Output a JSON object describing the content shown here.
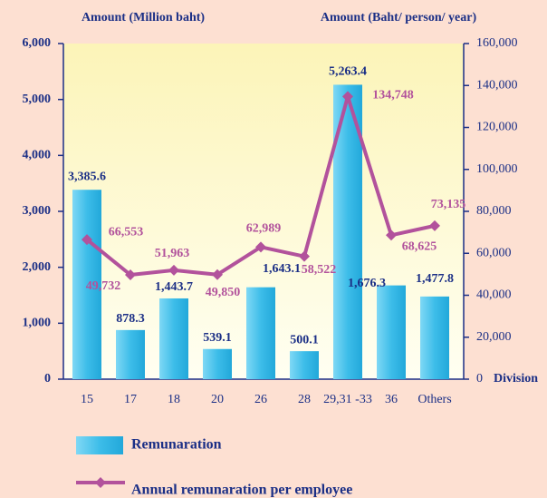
{
  "chart_data": {
    "type": "bar-line",
    "y_label": "Amount (Million baht)",
    "y2_label": "Amount (Baht/ person/ year)",
    "x_label": "Division",
    "categories": [
      "15",
      "17",
      "18",
      "20",
      "26",
      "28",
      "29,31 -33",
      "36",
      "Others"
    ],
    "series": [
      {
        "name": "Remunaration",
        "type": "bar",
        "color": "#3dbde9",
        "values": [
          3385.6,
          878.3,
          1443.7,
          539.1,
          1643.1,
          500.1,
          5263.4,
          1676.3,
          1477.8
        ],
        "value_labels": [
          "3,385.6",
          "878.3",
          "1,443.7",
          "539.1",
          "1,643.1",
          "500.1",
          "5,263.4",
          "1,676.3",
          "1,477.8"
        ]
      },
      {
        "name": "Annual remunaration per employee",
        "type": "line",
        "axis": "y2",
        "color": "#b2529c",
        "values": [
          66553,
          49732,
          51963,
          49850,
          62989,
          58522,
          134748,
          68625,
          73135
        ],
        "value_labels": [
          "66,553",
          "49,732",
          "51,963",
          "49,850",
          "62,989",
          "58,522",
          "134,748",
          "68,625",
          "73,135"
        ]
      }
    ],
    "ylim": [
      0,
      6000
    ],
    "yticks": [
      0,
      {
        "value": 1000,
        "label": "1,000"
      },
      {
        "value": 2000,
        "label": "2,000"
      },
      {
        "value": 3000,
        "label": "3,000"
      },
      {
        "value": 4000,
        "label": "4,000"
      },
      {
        "value": 5000,
        "label": "5,000"
      },
      {
        "value": 6000,
        "label": "6,000"
      }
    ],
    "y2lim": [
      0,
      160000
    ],
    "y2ticks": [
      0,
      {
        "value": 20000,
        "label": "20,000"
      },
      {
        "value": 40000,
        "label": "40,000"
      },
      {
        "value": 60000,
        "label": "60,000"
      },
      {
        "value": 80000,
        "label": "80,000"
      },
      {
        "value": 100000,
        "label": "100,000"
      },
      {
        "value": 120000,
        "label": "120,000"
      },
      {
        "value": 140000,
        "label": "140,000"
      },
      {
        "value": 160000,
        "label": "160,000"
      }
    ]
  }
}
